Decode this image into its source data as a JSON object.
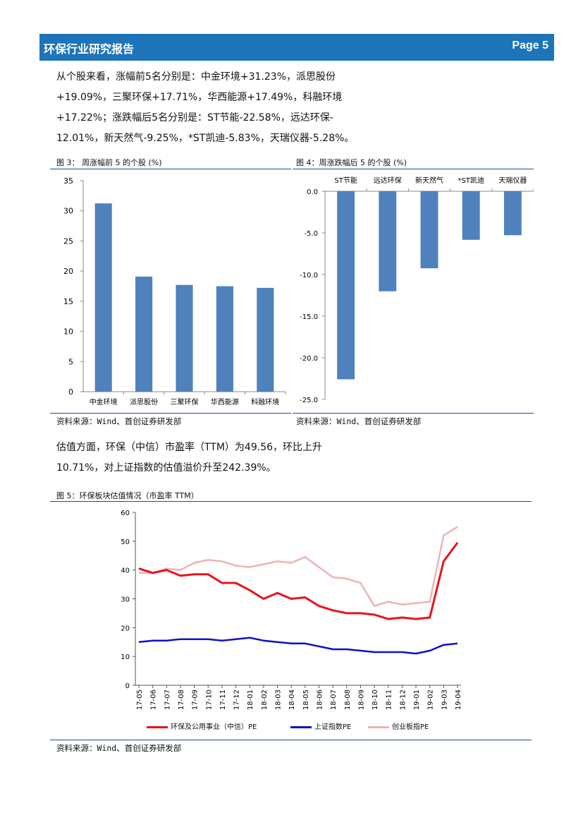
{
  "header": {
    "title": "环保行业研究报告",
    "page": "Page 5"
  },
  "para1": {
    "lines": [
      "从个股来看，涨幅前5名分别是：中金环境+31.23%，派思股份",
      "+19.09%，三聚环保+17.71%，华西能源+17.49%，科融环境",
      "+17.22%；涨跌幅后5名分别是：ST节能-22.58%，远达环保-",
      "12.01%，新天然气-9.25%，*ST凯迪-5.83%，天瑞仪器-5.28%。"
    ]
  },
  "fig3": {
    "caption": "图 3： 周涨幅前 5 的个股 (%)"
  },
  "fig4": {
    "caption": "图 4：周涨跌幅后 5 的个股  (%)"
  },
  "source3": "资料来源：Wind、首创证券研发部",
  "source4": "资料来源：Wind、首创证券研发部",
  "para2": {
    "lines": [
      "估值方面，环保（中信）市盈率（TTM）为49.56，环比上升",
      "10.71%，对上证指数的估值溢价升至242.39%。"
    ]
  },
  "fig5": {
    "caption": "图 5：环保板块估值情况（市盈率 TTM）"
  },
  "source5": "资料来源：Wind、首创证券研发部",
  "chart_data": [
    {
      "type": "bar",
      "categories": [
        "中金环境",
        "派思股份",
        "三聚环保",
        "华西能源",
        "科融环境"
      ],
      "values": [
        31.23,
        19.09,
        17.71,
        17.49,
        17.22
      ],
      "ylim": [
        0,
        35
      ],
      "yticks": [
        "0",
        "5",
        "10",
        "15",
        "20",
        "25",
        "30",
        "35"
      ],
      "color": "#4f81bd"
    },
    {
      "type": "bar",
      "categories": [
        "ST节能",
        "远达环保",
        "新天然气",
        "*ST凯迪",
        "天瑞仪器"
      ],
      "values": [
        -22.58,
        -12.01,
        -9.25,
        -5.83,
        -5.28
      ],
      "ylim": [
        -25,
        0
      ],
      "yticks": [
        "0.0",
        "-5.0",
        "-10.0",
        "-15.0",
        "-20.0",
        "-25.0"
      ],
      "color": "#4f81bd"
    },
    {
      "type": "line",
      "x": [
        "17-05",
        "17-06",
        "17-07",
        "17-08",
        "17-09",
        "17-10",
        "17-11",
        "17-12",
        "18-01",
        "18-02",
        "18-03",
        "18-04",
        "18-05",
        "18-06",
        "18-07",
        "18-08",
        "18-09",
        "18-10",
        "18-11",
        "18-12",
        "19-01",
        "19-02",
        "19-03",
        "19-04"
      ],
      "ylim": [
        0,
        60
      ],
      "yticks": [
        "0",
        "10",
        "20",
        "30",
        "40",
        "50",
        "60"
      ],
      "series": [
        {
          "name": "环保及公用事业（中信）PE",
          "color": "#e8141c",
          "values": [
            40.5,
            39,
            40,
            38,
            38.5,
            38.5,
            35.5,
            35.5,
            33,
            30,
            32,
            30,
            30.5,
            27.5,
            26,
            25,
            25,
            24.5,
            23,
            23.5,
            23,
            23.5,
            43,
            49.5
          ]
        },
        {
          "name": "上证指数PE",
          "color": "#1010c8",
          "values": [
            15,
            15.5,
            15.5,
            16,
            16,
            16,
            15.5,
            16,
            16.5,
            15.5,
            15,
            14.5,
            14.5,
            13.5,
            12.5,
            12.5,
            12,
            11.5,
            11.5,
            11.5,
            11,
            12,
            14,
            14.5
          ]
        },
        {
          "name": "创业板指PE",
          "color": "#ebb4b4",
          "values": [
            39,
            39,
            40.5,
            40,
            42.5,
            43.5,
            43,
            41.5,
            41,
            42,
            43,
            42.5,
            44.5,
            41,
            37.5,
            37,
            35.5,
            27.5,
            29,
            28,
            28.5,
            29,
            52,
            55
          ]
        }
      ]
    }
  ]
}
